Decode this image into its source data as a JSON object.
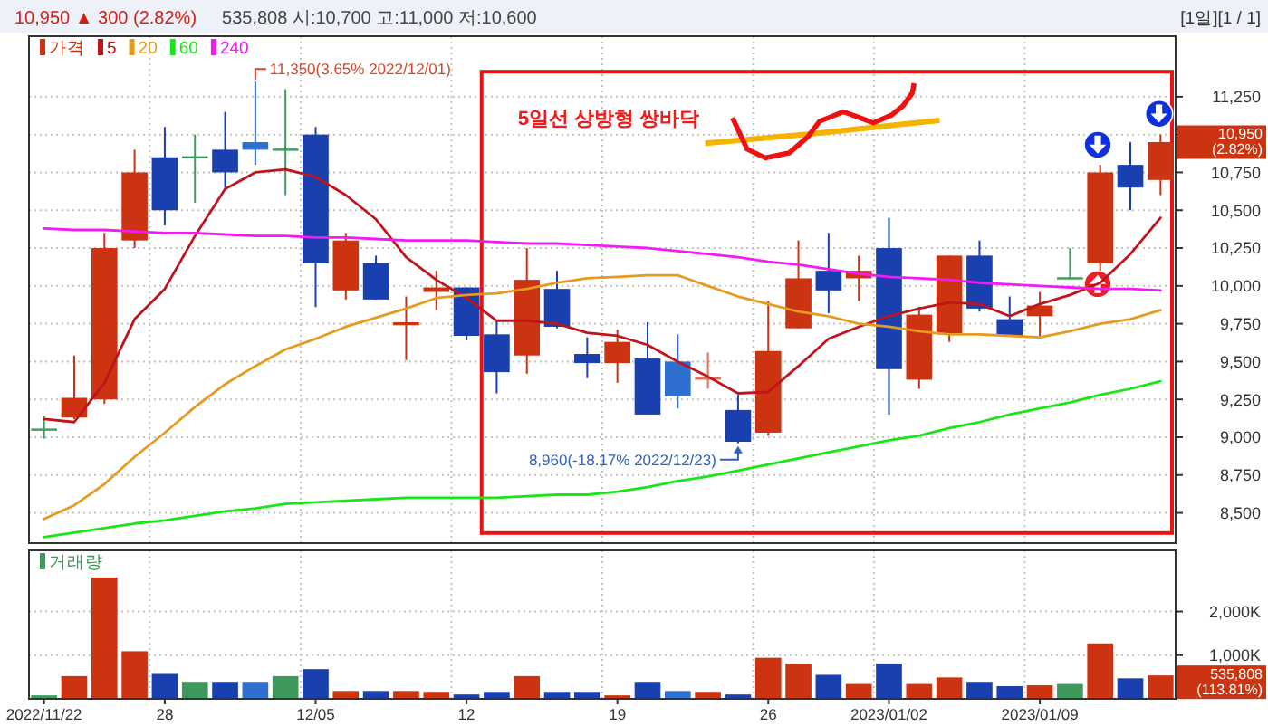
{
  "chart_data": [
    {
      "type": "candlestick",
      "title": "10,950 ▲ 300 (2.82%)",
      "subtitle": "535,808 시:10,700 고:11,000 저:10,600",
      "categories": [
        null,
        null,
        null,
        null,
        null,
        null,
        null,
        null,
        null,
        null,
        null,
        null,
        null,
        null,
        null,
        null,
        null,
        null,
        null,
        null,
        null,
        null,
        null,
        null,
        null,
        null,
        null,
        null,
        null,
        null,
        null,
        null,
        null,
        null,
        null,
        null,
        null,
        null
      ],
      "series": [
        {
          "name": "가격",
          "color": "#cc3311",
          "colors": [
            "#3d9a5c",
            "#cc3311",
            "#cc3311",
            "#cc3311",
            "#1a3fae",
            "#3d9a5c",
            "#1a3fae",
            "#2f6fcf",
            "#3d9a5c",
            "#1a3fae",
            "#cc3311",
            "#1a3fae",
            "#cc3311",
            "#cc3311",
            "#1a3fae",
            "#1a3fae",
            "#cc3311",
            "#1a3fae",
            "#1a3fae",
            "#cc3311",
            "#1a3fae",
            "#2f6fcf",
            "#e0705a",
            "#1a3fae",
            "#cc3311",
            "#cc3311",
            "#1a3fae",
            "#cc3311",
            "#1a3fae",
            "#cc3311",
            "#cc3311",
            "#1a3fae",
            "#1a3fae",
            "#cc3311",
            "#3d9a5c",
            "#cc3311",
            "#1a3fae",
            "#cc3311"
          ],
          "ohlc": [
            [
              9050,
              9140,
              8990,
              9050
            ],
            [
              9130,
              9540,
              9120,
              9260
            ],
            [
              9250,
              10350,
              9220,
              10250
            ],
            [
              10300,
              10900,
              10250,
              10750
            ],
            [
              10850,
              11050,
              10400,
              10500
            ],
            [
              10850,
              11000,
              10550,
              10850
            ],
            [
              10900,
              11150,
              10650,
              10750
            ],
            [
              10950,
              11350,
              10800,
              10900
            ],
            [
              10900,
              11300,
              10600,
              10900
            ],
            [
              11000,
              11050,
              9860,
              10150
            ],
            [
              9970,
              10350,
              9910,
              10300
            ],
            [
              10150,
              10200,
              9910,
              9910
            ],
            [
              9740,
              9930,
              9510,
              9760
            ],
            [
              9960,
              10100,
              9840,
              9990
            ],
            [
              9990,
              9990,
              9640,
              9670
            ],
            [
              9680,
              9770,
              9290,
              9430
            ],
            [
              9540,
              10250,
              9420,
              10040
            ],
            [
              9980,
              10100,
              9720,
              9730
            ],
            [
              9550,
              9660,
              9390,
              9490
            ],
            [
              9490,
              9710,
              9360,
              9630
            ],
            [
              9520,
              9760,
              9150,
              9150
            ],
            [
              9500,
              9680,
              9190,
              9270
            ],
            [
              9380,
              9560,
              9320,
              9400
            ],
            [
              9180,
              9280,
              8960,
              8970
            ],
            [
              9030,
              9900,
              9010,
              9570
            ],
            [
              9720,
              10300,
              9720,
              10050
            ],
            [
              10100,
              10350,
              9820,
              9970
            ],
            [
              10050,
              10200,
              9900,
              10100
            ],
            [
              10250,
              10450,
              9150,
              9450
            ],
            [
              9380,
              9860,
              9320,
              9810
            ],
            [
              9680,
              10200,
              9630,
              10200
            ],
            [
              10200,
              10300,
              9830,
              9850
            ],
            [
              9780,
              9930,
              9670,
              9670
            ],
            [
              9800,
              9960,
              9670,
              9870
            ],
            [
              10050,
              10250,
              10050,
              10050
            ],
            [
              10150,
              10800,
              10100,
              10750
            ],
            [
              10800,
              10950,
              10500,
              10650
            ],
            [
              10700,
              11000,
              10600,
              10950
            ]
          ]
        },
        {
          "name": "5",
          "type": "line",
          "color": "#c0141c",
          "values": [
            9120,
            9100,
            9360,
            9780,
            9980,
            10330,
            10640,
            10750,
            10770,
            10720,
            10600,
            10440,
            10190,
            10040,
            9920,
            9770,
            9770,
            9750,
            9690,
            9670,
            9610,
            9500,
            9400,
            9290,
            9300,
            9470,
            9650,
            9730,
            9800,
            9850,
            9890,
            9880,
            9800,
            9880,
            9940,
            10020,
            10210,
            10450
          ]
        },
        {
          "name": "20",
          "type": "line",
          "color": "#e49b1f",
          "values": [
            8460,
            8550,
            8690,
            8870,
            9030,
            9200,
            9350,
            9470,
            9580,
            9650,
            9730,
            9790,
            9850,
            9920,
            9940,
            9950,
            9980,
            10020,
            10050,
            10060,
            10070,
            10070,
            10000,
            9930,
            9880,
            9830,
            9800,
            9750,
            9730,
            9700,
            9680,
            9680,
            9670,
            9660,
            9700,
            9750,
            9780,
            9840
          ]
        },
        {
          "name": "60",
          "type": "line",
          "color": "#19e619",
          "values": [
            8340,
            8370,
            8400,
            8430,
            8450,
            8480,
            8510,
            8530,
            8560,
            8570,
            8580,
            8590,
            8600,
            8600,
            8600,
            8600,
            8610,
            8620,
            8620,
            8640,
            8670,
            8710,
            8740,
            8780,
            8820,
            8860,
            8900,
            8940,
            8980,
            9010,
            9060,
            9100,
            9150,
            9190,
            9230,
            9280,
            9320,
            9370
          ]
        },
        {
          "name": "240",
          "type": "line",
          "color": "#f21cf2",
          "values": [
            10380,
            10370,
            10370,
            10360,
            10350,
            10350,
            10340,
            10330,
            10330,
            10320,
            10320,
            10310,
            10300,
            10300,
            10300,
            10290,
            10280,
            10280,
            10270,
            10260,
            10250,
            10230,
            10210,
            10190,
            10160,
            10140,
            10110,
            10080,
            10060,
            10050,
            10040,
            10020,
            10010,
            10000,
            9990,
            9980,
            9980,
            9970
          ]
        }
      ],
      "ylim": [
        8300,
        11650
      ],
      "yticks": [
        {
          "value": 8500,
          "label": "8,500"
        },
        {
          "value": 8750,
          "label": "8,750"
        },
        {
          "value": 9000,
          "label": "9,000"
        },
        {
          "value": 9250,
          "label": "9,250"
        },
        {
          "value": 9500,
          "label": "9,500"
        },
        {
          "value": 9750,
          "label": "9,750"
        },
        {
          "value": 10000,
          "label": "10,000"
        },
        {
          "value": 10250,
          "label": "10,250"
        },
        {
          "value": 10500,
          "label": "10,500"
        },
        {
          "value": 10750,
          "label": "10,750"
        },
        {
          "value": 11000,
          "label": null
        },
        {
          "value": 11250,
          "label": "11,250"
        }
      ],
      "tick_labels": "y",
      "grid": true,
      "legend": "top left",
      "annotations": [
        "5일선 상방형 쌍바닥",
        "[1일][1 / 1]",
        "11,350(3.65% 2022/12/01)",
        "8,960(-18.17% 2022/12/23)",
        "10,950\n(2.82%)"
      ]
    },
    {
      "type": "bar",
      "categories": [
        "2022/11/22",
        null,
        null,
        null,
        "28",
        null,
        null,
        null,
        null,
        "12/05",
        null,
        null,
        null,
        null,
        "12",
        null,
        null,
        null,
        null,
        "19",
        null,
        null,
        null,
        null,
        "26",
        null,
        null,
        null,
        "2023/01/02",
        null,
        null,
        null,
        null,
        "2023/01/09",
        null,
        null,
        null,
        null
      ],
      "series": [
        {
          "name": "거래량",
          "color": "#3d9a5c",
          "colors": [
            "#3d9a5c",
            "#cc3311",
            "#cc3311",
            "#cc3311",
            "#1a3fae",
            "#3d9a5c",
            "#1a3fae",
            "#2f6fcf",
            "#3d9a5c",
            "#1a3fae",
            "#cc3311",
            "#1a3fae",
            "#cc3311",
            "#cc3311",
            "#1a3fae",
            "#1a3fae",
            "#cc3311",
            "#1a3fae",
            "#1a3fae",
            "#cc3311",
            "#1a3fae",
            "#2f6fcf",
            "#cc3311",
            "#1a3fae",
            "#cc3311",
            "#cc3311",
            "#1a3fae",
            "#cc3311",
            "#1a3fae",
            "#cc3311",
            "#cc3311",
            "#1a3fae",
            "#1a3fae",
            "#cc3311",
            "#3d9a5c",
            "#cc3311",
            "#1a3fae",
            "#cc3311"
          ],
          "values": [
            80000,
            520000,
            2780000,
            1090000,
            570000,
            390000,
            390000,
            390000,
            520000,
            680000,
            180000,
            180000,
            180000,
            160000,
            100000,
            160000,
            520000,
            160000,
            160000,
            80000,
            390000,
            180000,
            160000,
            100000,
            940000,
            810000,
            550000,
            340000,
            810000,
            340000,
            490000,
            390000,
            290000,
            310000,
            340000,
            1270000,
            470000,
            535808
          ]
        }
      ],
      "ylim": [
        0,
        3400000
      ],
      "yticks": [
        {
          "value": 1000000,
          "label": "1,000K"
        },
        {
          "value": 2000000,
          "label": "2,000K"
        }
      ],
      "grid": true,
      "legend": "top left",
      "annotations": [
        "535,808\n(113.81%)"
      ]
    }
  ]
}
